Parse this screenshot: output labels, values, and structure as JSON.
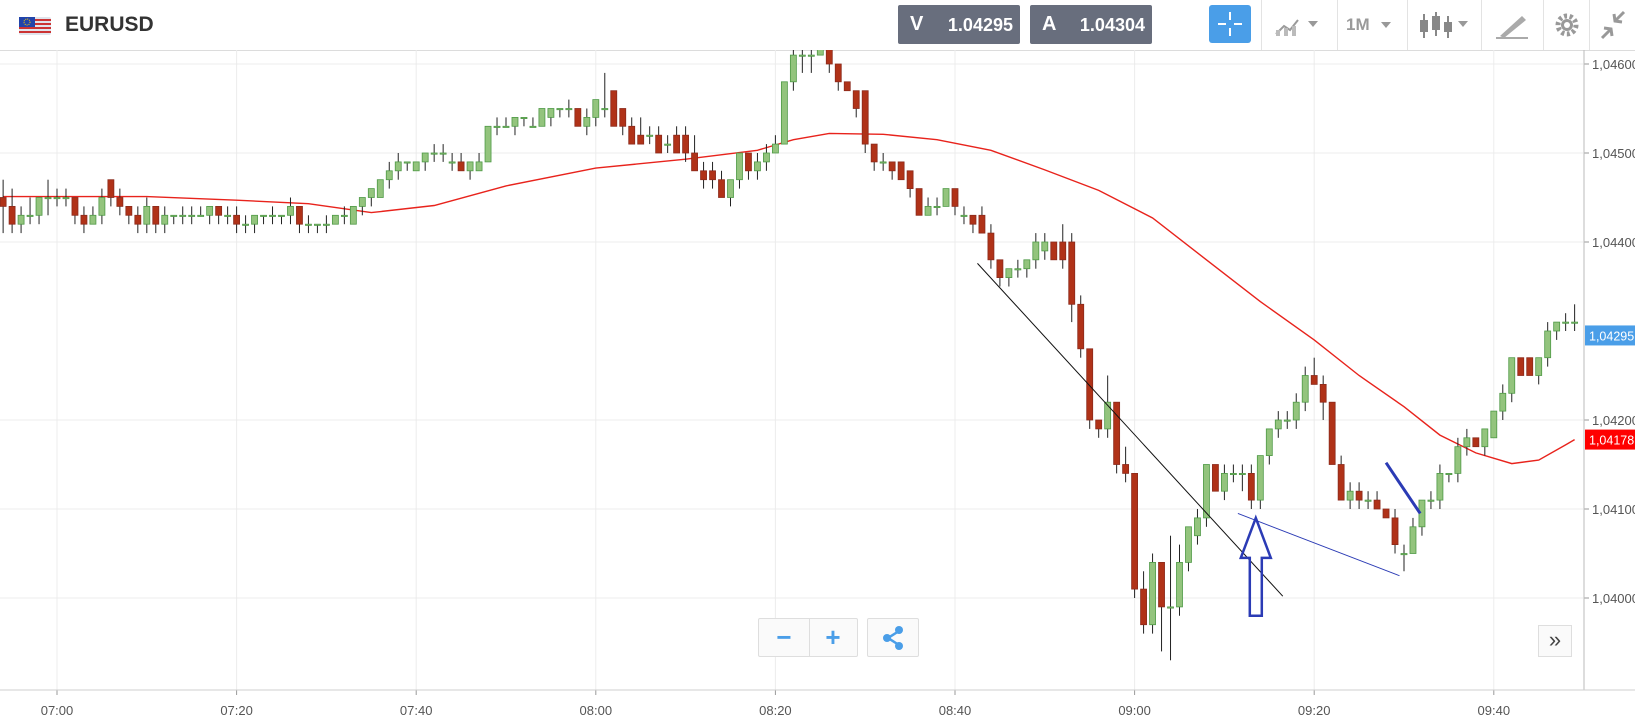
{
  "header": {
    "symbol": "EURUSD",
    "bid_label": "V",
    "bid_price": "1.04295",
    "ask_label": "A",
    "ask_price": "1.04304",
    "timeframe": "1M",
    "icons": [
      "flag-icon",
      "crosshair-icon",
      "chart-type-icon",
      "candles-icon",
      "draw-icon",
      "gear-icon",
      "compress-icon"
    ]
  },
  "colors": {
    "up": "#4f9a46",
    "up_fill": "#93c47d",
    "down": "#8b2a1c",
    "down_fill": "#b03218",
    "ma": "#e8231c",
    "trend": "#111111",
    "arrow": "#2b3bb5",
    "bid_badge": "#4a9ee8",
    "ma_badge": "#ff0000"
  },
  "controls": {
    "zoom_out": "−",
    "zoom_in": "+",
    "share": "share-icon",
    "expand": "»"
  },
  "chart_data": {
    "type": "candlestick",
    "y_ticks": [
      "1,04000",
      "1,04100",
      "1,04200",
      "1,04400",
      "1,04500",
      "1,04600"
    ],
    "y_tick_values": [
      1.04,
      1.041,
      1.042,
      1.044,
      1.045,
      1.046
    ],
    "x_ticks": [
      "07:00",
      "07:20",
      "07:40",
      "08:00",
      "08:20",
      "08:40",
      "09:00",
      "09:20",
      "09:40"
    ],
    "x_tick_minutes": [
      0,
      20,
      40,
      60,
      80,
      100,
      120,
      140,
      160
    ],
    "ylim": [
      1.0393,
      1.0465
    ],
    "xlim": [
      -6,
      169
    ],
    "price_badge": "1,04295",
    "price_badge_value": 1.04295,
    "ma_badge": "1,04178",
    "ma_badge_value": 1.04178,
    "candles": [
      [
        -6,
        1.0445,
        1.0447,
        1.0441,
        1.0444
      ],
      [
        -5,
        1.0444,
        1.0446,
        1.0441,
        1.0442
      ],
      [
        -4,
        1.0442,
        1.0444,
        1.0441,
        1.0443
      ],
      [
        -3,
        1.0443,
        1.0445,
        1.0442,
        1.0443
      ],
      [
        -2,
        1.0443,
        1.0445,
        1.0442,
        1.0445
      ],
      [
        -1,
        1.0445,
        1.0447,
        1.0443,
        1.0445
      ],
      [
        0,
        1.0445,
        1.0446,
        1.0444,
        1.0445
      ],
      [
        1,
        1.0445,
        1.0446,
        1.0444,
        1.0445
      ],
      [
        2,
        1.0445,
        1.0445,
        1.0442,
        1.0443
      ],
      [
        3,
        1.0443,
        1.0444,
        1.0441,
        1.0442
      ],
      [
        4,
        1.0442,
        1.0444,
        1.0442,
        1.0443
      ],
      [
        5,
        1.0443,
        1.0446,
        1.0442,
        1.0445
      ],
      [
        6,
        1.0447,
        1.0447,
        1.0444,
        1.0445
      ],
      [
        7,
        1.0445,
        1.0446,
        1.0443,
        1.0444
      ],
      [
        8,
        1.0444,
        1.0444,
        1.0442,
        1.0443
      ],
      [
        9,
        1.0443,
        1.0444,
        1.0441,
        1.0442
      ],
      [
        10,
        1.0442,
        1.0445,
        1.0441,
        1.0444
      ],
      [
        11,
        1.0444,
        1.0444,
        1.0441,
        1.0442
      ],
      [
        12,
        1.0442,
        1.0444,
        1.0441,
        1.0443
      ],
      [
        13,
        1.0443,
        1.0443,
        1.0442,
        1.0443
      ],
      [
        14,
        1.0443,
        1.0444,
        1.0442,
        1.0443
      ],
      [
        15,
        1.0443,
        1.0444,
        1.0442,
        1.0443
      ],
      [
        16,
        1.0443,
        1.0444,
        1.0443,
        1.0443
      ],
      [
        17,
        1.0443,
        1.0444,
        1.0442,
        1.0444
      ],
      [
        18,
        1.0444,
        1.0444,
        1.0442,
        1.0443
      ],
      [
        19,
        1.0443,
        1.0444,
        1.0442,
        1.0443
      ],
      [
        20,
        1.0443,
        1.0444,
        1.0441,
        1.0442
      ],
      [
        21,
        1.0442,
        1.0443,
        1.0441,
        1.0442
      ],
      [
        22,
        1.0442,
        1.0443,
        1.0441,
        1.0443
      ],
      [
        23,
        1.0443,
        1.0443,
        1.0442,
        1.0443
      ],
      [
        24,
        1.0443,
        1.0444,
        1.0442,
        1.0443
      ],
      [
        25,
        1.0443,
        1.0443,
        1.0442,
        1.0443
      ],
      [
        26,
        1.0443,
        1.0445,
        1.0442,
        1.0444
      ],
      [
        27,
        1.0444,
        1.0444,
        1.0441,
        1.0442
      ],
      [
        28,
        1.0442,
        1.0443,
        1.0441,
        1.0442
      ],
      [
        29,
        1.0442,
        1.0442,
        1.0441,
        1.0442
      ],
      [
        30,
        1.0442,
        1.0443,
        1.0441,
        1.0442
      ],
      [
        31,
        1.0442,
        1.0443,
        1.0442,
        1.0443
      ],
      [
        32,
        1.0443,
        1.0444,
        1.0442,
        1.0443
      ],
      [
        33,
        1.0442,
        1.0444,
        1.0442,
        1.0444
      ],
      [
        34,
        1.0444,
        1.0445,
        1.0443,
        1.0445
      ],
      [
        35,
        1.0445,
        1.0446,
        1.0444,
        1.0446
      ],
      [
        36,
        1.0445,
        1.0447,
        1.0445,
        1.0447
      ],
      [
        37,
        1.0447,
        1.0449,
        1.0446,
        1.0448
      ],
      [
        38,
        1.0448,
        1.045,
        1.0447,
        1.0449
      ],
      [
        39,
        1.0449,
        1.0449,
        1.0448,
        1.0449
      ],
      [
        40,
        1.0448,
        1.0449,
        1.0448,
        1.0449
      ],
      [
        41,
        1.0449,
        1.045,
        1.0448,
        1.045
      ],
      [
        42,
        1.045,
        1.0451,
        1.0449,
        1.045
      ],
      [
        43,
        1.045,
        1.0451,
        1.0449,
        1.045
      ],
      [
        44,
        1.0449,
        1.045,
        1.0448,
        1.0449
      ],
      [
        45,
        1.0449,
        1.045,
        1.0448,
        1.0448
      ],
      [
        46,
        1.0448,
        1.0449,
        1.0447,
        1.0449
      ],
      [
        47,
        1.0448,
        1.045,
        1.0448,
        1.0449
      ],
      [
        48,
        1.0449,
        1.0453,
        1.0449,
        1.0453
      ],
      [
        49,
        1.0453,
        1.0454,
        1.0452,
        1.0453
      ],
      [
        50,
        1.0453,
        1.0454,
        1.0453,
        1.0453
      ],
      [
        51,
        1.0453,
        1.0454,
        1.0452,
        1.0454
      ],
      [
        52,
        1.0454,
        1.0454,
        1.0453,
        1.0454
      ],
      [
        53,
        1.0453,
        1.0454,
        1.0453,
        1.0453
      ],
      [
        54,
        1.0453,
        1.0455,
        1.0453,
        1.0455
      ],
      [
        55,
        1.0454,
        1.0455,
        1.0453,
        1.0455
      ],
      [
        56,
        1.0455,
        1.0455,
        1.0454,
        1.0455
      ],
      [
        57,
        1.0455,
        1.0456,
        1.0454,
        1.0455
      ],
      [
        58,
        1.0455,
        1.0455,
        1.0453,
        1.0453
      ],
      [
        59,
        1.0453,
        1.0455,
        1.0452,
        1.0454
      ],
      [
        60,
        1.0454,
        1.0456,
        1.0453,
        1.0456
      ],
      [
        61,
        1.0455,
        1.0459,
        1.0454,
        1.0455
      ],
      [
        62,
        1.0457,
        1.0457,
        1.0453,
        1.0453
      ],
      [
        63,
        1.0455,
        1.0455,
        1.0452,
        1.0453
      ],
      [
        64,
        1.0453,
        1.0454,
        1.0451,
        1.0451
      ],
      [
        65,
        1.0452,
        1.0454,
        1.0451,
        1.0451
      ],
      [
        66,
        1.0452,
        1.0453,
        1.0451,
        1.0452
      ],
      [
        67,
        1.0452,
        1.0453,
        1.045,
        1.045
      ],
      [
        68,
        1.0451,
        1.0452,
        1.045,
        1.0451
      ],
      [
        69,
        1.0452,
        1.0453,
        1.045,
        1.045
      ],
      [
        70,
        1.0452,
        1.0453,
        1.0449,
        1.045
      ],
      [
        71,
        1.045,
        1.0452,
        1.0448,
        1.0448
      ],
      [
        72,
        1.0448,
        1.0449,
        1.0446,
        1.0447
      ],
      [
        73,
        1.0448,
        1.0449,
        1.0446,
        1.0447
      ],
      [
        74,
        1.0447,
        1.0448,
        1.0445,
        1.0445
      ],
      [
        75,
        1.0445,
        1.0447,
        1.0444,
        1.0447
      ],
      [
        76,
        1.0447,
        1.045,
        1.0446,
        1.045
      ],
      [
        77,
        1.045,
        1.045,
        1.0447,
        1.0448
      ],
      [
        78,
        1.0448,
        1.045,
        1.0447,
        1.0449
      ],
      [
        79,
        1.0449,
        1.0451,
        1.0448,
        1.045
      ],
      [
        80,
        1.045,
        1.0452,
        1.045,
        1.0451
      ],
      [
        81,
        1.0451,
        1.0458,
        1.0451,
        1.0458
      ],
      [
        82,
        1.0458,
        1.0462,
        1.0457,
        1.0461
      ],
      [
        83,
        1.0461,
        1.0462,
        1.0459,
        1.0461
      ],
      [
        84,
        1.0461,
        1.0463,
        1.0459,
        1.0461
      ],
      [
        85,
        1.0461,
        1.0464,
        1.0461,
        1.0463
      ],
      [
        86,
        1.0463,
        1.0463,
        1.0459,
        1.046
      ],
      [
        87,
        1.046,
        1.046,
        1.0457,
        1.0458
      ],
      [
        88,
        1.0458,
        1.0458,
        1.0457,
        1.0457
      ],
      [
        89,
        1.0457,
        1.0457,
        1.0454,
        1.0455
      ],
      [
        90,
        1.0457,
        1.0457,
        1.045,
        1.0451
      ],
      [
        91,
        1.0451,
        1.0451,
        1.0448,
        1.0449
      ],
      [
        92,
        1.0449,
        1.045,
        1.0448,
        1.0449
      ],
      [
        93,
        1.0449,
        1.0449,
        1.0447,
        1.0448
      ],
      [
        94,
        1.0449,
        1.0449,
        1.0447,
        1.0447
      ],
      [
        95,
        1.0448,
        1.0448,
        1.0445,
        1.0446
      ],
      [
        96,
        1.0446,
        1.0446,
        1.0443,
        1.0443
      ],
      [
        97,
        1.0443,
        1.0445,
        1.0443,
        1.0444
      ],
      [
        98,
        1.0444,
        1.0445,
        1.0443,
        1.0444
      ],
      [
        99,
        1.0444,
        1.0446,
        1.0444,
        1.0446
      ],
      [
        100,
        1.0446,
        1.0446,
        1.0443,
        1.0444
      ],
      [
        101,
        1.0443,
        1.0444,
        1.0442,
        1.0443
      ],
      [
        102,
        1.0443,
        1.0443,
        1.0441,
        1.0442
      ],
      [
        103,
        1.0443,
        1.0444,
        1.0441,
        1.0441
      ],
      [
        104,
        1.0441,
        1.0442,
        1.0437,
        1.0438
      ],
      [
        105,
        1.0438,
        1.0438,
        1.0435,
        1.0436
      ],
      [
        106,
        1.0436,
        1.0437,
        1.0435,
        1.0437
      ],
      [
        107,
        1.0437,
        1.0438,
        1.0436,
        1.0437
      ],
      [
        108,
        1.0437,
        1.0438,
        1.0436,
        1.0438
      ],
      [
        109,
        1.0438,
        1.0441,
        1.0437,
        1.044
      ],
      [
        110,
        1.0439,
        1.0441,
        1.0438,
        1.044
      ],
      [
        111,
        1.044,
        1.044,
        1.0438,
        1.0438
      ],
      [
        112,
        1.044,
        1.0442,
        1.0437,
        1.0438
      ],
      [
        113,
        1.044,
        1.0441,
        1.0431,
        1.0433
      ],
      [
        114,
        1.0433,
        1.0434,
        1.0427,
        1.0428
      ],
      [
        115,
        1.0428,
        1.0428,
        1.0419,
        1.042
      ],
      [
        116,
        1.042,
        1.042,
        1.0418,
        1.0419
      ],
      [
        117,
        1.0419,
        1.0425,
        1.0418,
        1.0422
      ],
      [
        118,
        1.0422,
        1.0422,
        1.0414,
        1.0415
      ],
      [
        119,
        1.0415,
        1.0417,
        1.0413,
        1.0414
      ],
      [
        120,
        1.0414,
        1.0414,
        1.04,
        1.0401
      ],
      [
        121,
        1.0401,
        1.0403,
        1.0396,
        1.0397
      ],
      [
        122,
        1.0397,
        1.0405,
        1.0396,
        1.0404
      ],
      [
        123,
        1.0404,
        1.0404,
        1.0394,
        1.0399
      ],
      [
        124,
        1.0399,
        1.0407,
        1.0393,
        1.0399
      ],
      [
        125,
        1.0399,
        1.0406,
        1.0398,
        1.0404
      ],
      [
        126,
        1.0404,
        1.0408,
        1.0403,
        1.0408
      ],
      [
        127,
        1.0407,
        1.041,
        1.0406,
        1.0409
      ],
      [
        128,
        1.0409,
        1.0415,
        1.0408,
        1.0415
      ],
      [
        129,
        1.0415,
        1.0415,
        1.0412,
        1.0412
      ],
      [
        130,
        1.0412,
        1.0415,
        1.0411,
        1.0414
      ],
      [
        131,
        1.0414,
        1.0415,
        1.0413,
        1.0414
      ],
      [
        132,
        1.0414,
        1.0415,
        1.0412,
        1.0414
      ],
      [
        133,
        1.0414,
        1.0415,
        1.041,
        1.0411
      ],
      [
        134,
        1.0411,
        1.0416,
        1.041,
        1.0416
      ],
      [
        135,
        1.0416,
        1.0419,
        1.0415,
        1.0419
      ],
      [
        136,
        1.0419,
        1.0421,
        1.0418,
        1.042
      ],
      [
        137,
        1.042,
        1.0421,
        1.0419,
        1.042
      ],
      [
        138,
        1.042,
        1.0423,
        1.0419,
        1.0422
      ],
      [
        139,
        1.0422,
        1.0426,
        1.0421,
        1.0425
      ],
      [
        140,
        1.0425,
        1.0427,
        1.0424,
        1.0424
      ],
      [
        141,
        1.0424,
        1.0425,
        1.042,
        1.0422
      ],
      [
        142,
        1.0422,
        1.0422,
        1.0415,
        1.0415
      ],
      [
        143,
        1.0415,
        1.0416,
        1.0411,
        1.0411
      ],
      [
        144,
        1.0411,
        1.0413,
        1.041,
        1.0412
      ],
      [
        145,
        1.0412,
        1.0413,
        1.041,
        1.0411
      ],
      [
        146,
        1.0411,
        1.0412,
        1.041,
        1.0411
      ],
      [
        147,
        1.0411,
        1.0412,
        1.041,
        1.041
      ],
      [
        148,
        1.041,
        1.041,
        1.0409,
        1.0409
      ],
      [
        149,
        1.0409,
        1.041,
        1.0405,
        1.0406
      ],
      [
        150,
        1.0405,
        1.0406,
        1.0403,
        1.0405
      ],
      [
        151,
        1.0405,
        1.0409,
        1.0405,
        1.0408
      ],
      [
        152,
        1.0408,
        1.0411,
        1.0407,
        1.0411
      ],
      [
        153,
        1.0411,
        1.0412,
        1.041,
        1.0411
      ],
      [
        154,
        1.0411,
        1.0415,
        1.041,
        1.0414
      ],
      [
        155,
        1.0414,
        1.0414,
        1.0413,
        1.0414
      ],
      [
        156,
        1.0414,
        1.0418,
        1.0413,
        1.0417
      ],
      [
        157,
        1.0417,
        1.0419,
        1.0416,
        1.0418
      ],
      [
        158,
        1.0418,
        1.0418,
        1.0417,
        1.0417
      ],
      [
        159,
        1.0417,
        1.0419,
        1.0416,
        1.0419
      ],
      [
        160,
        1.0418,
        1.0421,
        1.0418,
        1.0421
      ],
      [
        161,
        1.0421,
        1.0424,
        1.042,
        1.0423
      ],
      [
        162,
        1.0423,
        1.0427,
        1.0422,
        1.0427
      ],
      [
        163,
        1.0427,
        1.0427,
        1.0425,
        1.0425
      ],
      [
        164,
        1.0427,
        1.0427,
        1.0425,
        1.0425
      ],
      [
        165,
        1.0425,
        1.0427,
        1.0424,
        1.0427
      ],
      [
        166,
        1.0427,
        1.0431,
        1.0426,
        1.043
      ],
      [
        167,
        1.043,
        1.0431,
        1.0429,
        1.0431
      ],
      [
        168,
        1.0431,
        1.0432,
        1.043,
        1.0431
      ],
      [
        169,
        1.0431,
        1.0433,
        1.043,
        1.0431
      ]
    ],
    "moving_average": [
      [
        -6,
        1.04451
      ],
      [
        10,
        1.04451
      ],
      [
        20,
        1.04447
      ],
      [
        28,
        1.04443
      ],
      [
        35,
        1.04433
      ],
      [
        42,
        1.04441
      ],
      [
        50,
        1.04463
      ],
      [
        60,
        1.04483
      ],
      [
        70,
        1.04493
      ],
      [
        78,
        1.04503
      ],
      [
        82,
        1.04515
      ],
      [
        86,
        1.04522
      ],
      [
        92,
        1.04521
      ],
      [
        98,
        1.04515
      ],
      [
        104,
        1.04503
      ],
      [
        110,
        1.04481
      ],
      [
        116,
        1.04458
      ],
      [
        122,
        1.04427
      ],
      [
        128,
        1.0438
      ],
      [
        134,
        1.04333
      ],
      [
        140,
        1.0429
      ],
      [
        145,
        1.0425
      ],
      [
        150,
        1.04215
      ],
      [
        154,
        1.04183
      ],
      [
        158,
        1.04163
      ],
      [
        162,
        1.04151
      ],
      [
        165,
        1.04155
      ],
      [
        168,
        1.04172
      ],
      [
        169,
        1.04178
      ]
    ],
    "trendlines": [
      {
        "from": [
          102.5,
          1.04376
        ],
        "to": [
          136.5,
          1.04002
        ],
        "style": "black"
      },
      {
        "from": [
          131.5,
          1.04095
        ],
        "to": [
          149.5,
          1.04025
        ],
        "style": "blue-thin"
      },
      {
        "from": [
          148,
          1.04152
        ],
        "to": [
          151.8,
          1.04095
        ],
        "style": "blue-thick"
      }
    ],
    "arrow": {
      "x": 133.5,
      "tip": 1.0409,
      "base": 1.0398
    }
  }
}
